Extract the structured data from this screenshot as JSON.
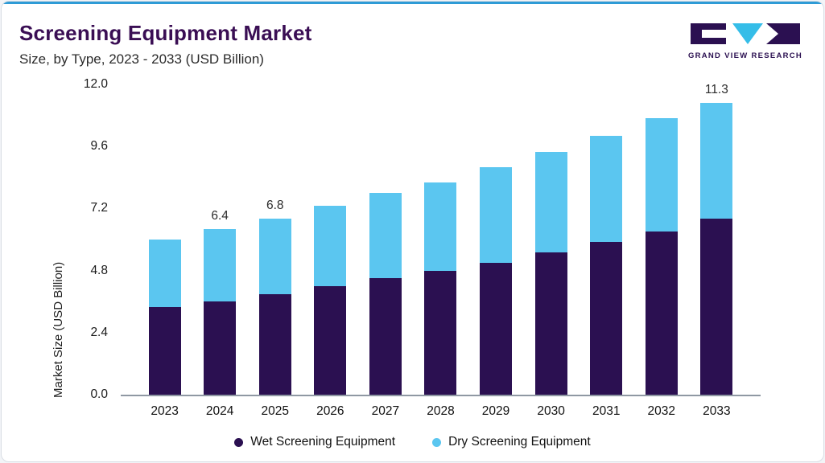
{
  "header": {
    "title": "Screening Equipment Market",
    "subtitle": "Size, by Type, 2023 - 2033 (USD Billion)",
    "logo_text": "GRAND VIEW RESEARCH"
  },
  "colors": {
    "accent_top": "#2E9BD6",
    "title": "#3A0E54",
    "wet": "#2B1051",
    "dry": "#5BC6F0",
    "logo_triangle": "#35BDE8"
  },
  "chart_data": {
    "type": "bar",
    "stacked": true,
    "title": "Screening Equipment Market Size, by Type, 2023 - 2033 (USD Billion)",
    "categories": [
      "2023",
      "2024",
      "2025",
      "2026",
      "2027",
      "2028",
      "2029",
      "2030",
      "2031",
      "2032",
      "2033"
    ],
    "series": [
      {
        "name": "Wet Screening Equipment",
        "color": "#2B1051",
        "values": [
          3.4,
          3.6,
          3.9,
          4.2,
          4.5,
          4.8,
          5.1,
          5.5,
          5.9,
          6.3,
          6.8
        ]
      },
      {
        "name": "Dry Screening Equipment",
        "color": "#5BC6F0",
        "values": [
          2.6,
          2.8,
          2.9,
          3.1,
          3.3,
          3.4,
          3.7,
          3.9,
          4.1,
          4.4,
          4.5
        ]
      }
    ],
    "totals": [
      6.0,
      6.4,
      6.8,
      7.3,
      7.8,
      8.2,
      8.8,
      9.4,
      10.0,
      10.7,
      11.3
    ],
    "bar_labels": [
      "",
      "6.4",
      "6.8",
      "",
      "",
      "",
      "",
      "",
      "",
      "",
      "11.3"
    ],
    "xlabel": "",
    "ylabel": "Market Size (USD Billion)",
    "ylim": [
      0,
      12
    ],
    "yticks": [
      "0.0",
      "2.4",
      "4.8",
      "7.2",
      "9.6",
      "12.0"
    ],
    "grid": false,
    "legend_position": "bottom"
  }
}
